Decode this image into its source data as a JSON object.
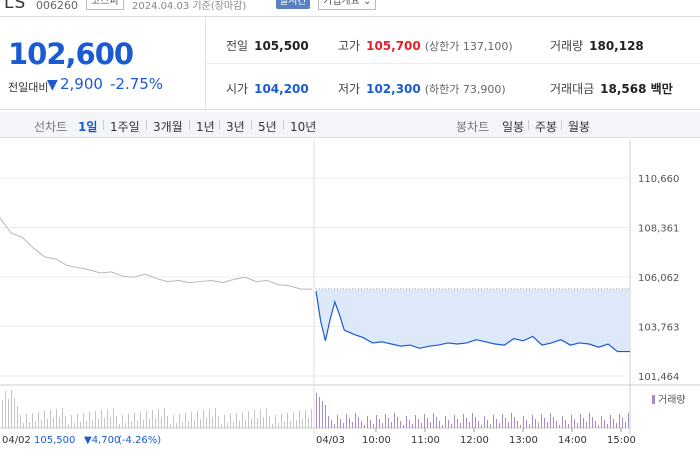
{
  "header": {
    "name": "LS",
    "code": "006260",
    "market": "코스피",
    "date": "2024.04.03 기준(장마감)",
    "realtime": "실시간",
    "company_info": "기업개요 ⌄"
  },
  "price": {
    "current": "102,600",
    "change_label": "전일대비",
    "change_arrow": "▼",
    "change": "2,900",
    "change_pct": "-2.75%"
  },
  "stats": {
    "prev_label": "전일",
    "prev": "105,500",
    "high_label": "고가",
    "high": "105,700",
    "upper_limit": "(상한가 137,100)",
    "volume_label": "거래량",
    "volume": "180,128",
    "open_label": "시가",
    "open": "104,200",
    "low_label": "저가",
    "low": "102,300",
    "lower_limit": "(하한가 73,900)",
    "amount_label": "거래대금",
    "amount": "18,568 백만"
  },
  "tabs": {
    "line_label": "선차트",
    "periods": [
      "1일",
      "1주일",
      "3개월",
      "1년",
      "3년",
      "5년",
      "10년"
    ],
    "candle_label": "봉차트",
    "candles": [
      "일봉",
      "주봉",
      "월봉"
    ]
  },
  "colors": {
    "accent": "#1a5bd1",
    "up": "#e0202d",
    "prev_line": "#b8b8b8",
    "fill": "#dde8f8",
    "volume": "#a58bc9"
  },
  "chart_data": {
    "type": "area",
    "ylim": [
      101464,
      110660
    ],
    "yticks": [
      "110,660",
      "108,361",
      "106,062",
      "103,763",
      "101,464"
    ],
    "prev_close_line": 105500,
    "legend_volume": "거래량",
    "prev_day_label": "04/02",
    "prev_day_value": "105,500",
    "prev_day_change": "▼4,700",
    "prev_day_pct": "(-4.26%)",
    "day_label": "04/03",
    "time_ticks": [
      "10:00",
      "11:00",
      "12:00",
      "13:00",
      "14:00",
      "15:00"
    ],
    "prev_series": [
      {
        "t": 0,
        "y": 108800
      },
      {
        "t": 0.02,
        "y": 108100
      },
      {
        "t": 0.04,
        "y": 107900
      },
      {
        "t": 0.06,
        "y": 107400
      },
      {
        "t": 0.08,
        "y": 107000
      },
      {
        "t": 0.1,
        "y": 106900
      },
      {
        "t": 0.12,
        "y": 106600
      },
      {
        "t": 0.14,
        "y": 106500
      },
      {
        "t": 0.16,
        "y": 106400
      },
      {
        "t": 0.18,
        "y": 106250
      },
      {
        "t": 0.2,
        "y": 106300
      },
      {
        "t": 0.22,
        "y": 106100
      },
      {
        "t": 0.24,
        "y": 106050
      },
      {
        "t": 0.26,
        "y": 106200
      },
      {
        "t": 0.28,
        "y": 106000
      },
      {
        "t": 0.3,
        "y": 105850
      },
      {
        "t": 0.32,
        "y": 105900
      },
      {
        "t": 0.34,
        "y": 105800
      },
      {
        "t": 0.36,
        "y": 105850
      },
      {
        "t": 0.38,
        "y": 105900
      },
      {
        "t": 0.4,
        "y": 105800
      },
      {
        "t": 0.42,
        "y": 105950
      },
      {
        "t": 0.44,
        "y": 106050
      },
      {
        "t": 0.46,
        "y": 105850
      },
      {
        "t": 0.48,
        "y": 105900
      },
      {
        "t": 0.5,
        "y": 105700
      },
      {
        "t": 0.52,
        "y": 105650
      },
      {
        "t": 0.54,
        "y": 105500
      },
      {
        "t": 0.56,
        "y": 105500
      }
    ],
    "day_series": [
      {
        "t": 0,
        "y": 105400
      },
      {
        "t": 0.015,
        "y": 104000
      },
      {
        "t": 0.03,
        "y": 103100
      },
      {
        "t": 0.045,
        "y": 104100
      },
      {
        "t": 0.06,
        "y": 104900
      },
      {
        "t": 0.075,
        "y": 104300
      },
      {
        "t": 0.09,
        "y": 103600
      },
      {
        "t": 0.12,
        "y": 103400
      },
      {
        "t": 0.15,
        "y": 103250
      },
      {
        "t": 0.18,
        "y": 103000
      },
      {
        "t": 0.21,
        "y": 103050
      },
      {
        "t": 0.24,
        "y": 102950
      },
      {
        "t": 0.27,
        "y": 102850
      },
      {
        "t": 0.3,
        "y": 102900
      },
      {
        "t": 0.33,
        "y": 102750
      },
      {
        "t": 0.36,
        "y": 102850
      },
      {
        "t": 0.39,
        "y": 102900
      },
      {
        "t": 0.42,
        "y": 103000
      },
      {
        "t": 0.45,
        "y": 102950
      },
      {
        "t": 0.48,
        "y": 103000
      },
      {
        "t": 0.51,
        "y": 103150
      },
      {
        "t": 0.54,
        "y": 103050
      },
      {
        "t": 0.57,
        "y": 102950
      },
      {
        "t": 0.6,
        "y": 102900
      },
      {
        "t": 0.63,
        "y": 103200
      },
      {
        "t": 0.66,
        "y": 103100
      },
      {
        "t": 0.69,
        "y": 103300
      },
      {
        "t": 0.72,
        "y": 102900
      },
      {
        "t": 0.75,
        "y": 103000
      },
      {
        "t": 0.78,
        "y": 103150
      },
      {
        "t": 0.81,
        "y": 102900
      },
      {
        "t": 0.84,
        "y": 103000
      },
      {
        "t": 0.87,
        "y": 102950
      },
      {
        "t": 0.9,
        "y": 102800
      },
      {
        "t": 0.93,
        "y": 102950
      },
      {
        "t": 0.96,
        "y": 102600
      },
      {
        "t": 1.0,
        "y": 102600
      }
    ]
  }
}
